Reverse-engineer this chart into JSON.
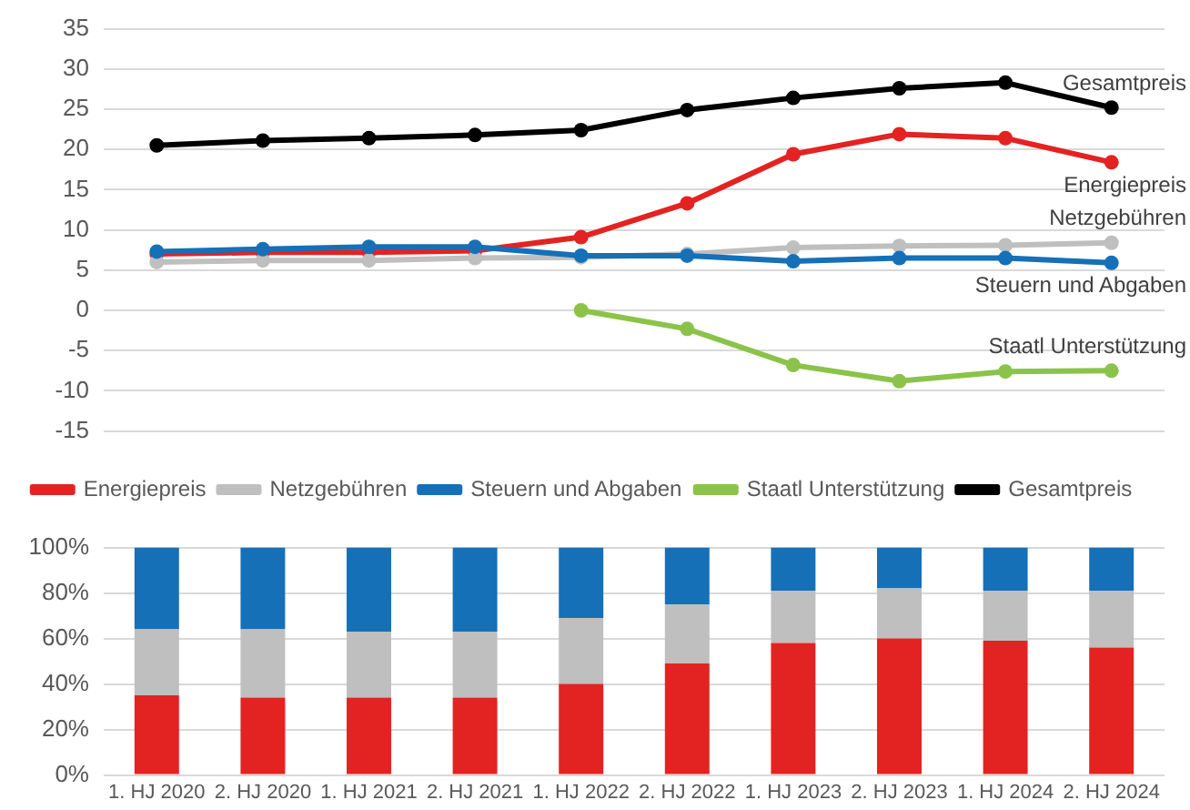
{
  "chart_data": [
    {
      "type": "line",
      "categories": [
        null,
        null,
        null,
        null,
        null,
        null,
        null,
        null,
        null,
        null
      ],
      "ylim": [
        -15,
        35
      ],
      "yticks": [
        -15,
        -10,
        -5,
        0,
        5,
        10,
        15,
        20,
        25,
        30,
        35
      ],
      "grid": "y",
      "legend": "bottom",
      "marker": "circle",
      "line_style": "solid",
      "annotations": [
        {
          "text": "Gesamtpreis",
          "y": 25.2
        },
        {
          "text": "Energiepreis",
          "y": 18.4
        },
        {
          "text": "Netzgebühren",
          "y": 8.4
        },
        {
          "text": "Steuern und Abgaben",
          "y": 5.9
        },
        {
          "text": "Staatl Unterstützung",
          "y": -7.5
        }
      ],
      "series": [
        {
          "name": "Energiepreis",
          "color": "#e32322",
          "values": [
            7.0,
            7.2,
            7.2,
            7.4,
            9.1,
            13.3,
            19.4,
            21.9,
            21.4,
            18.4
          ]
        },
        {
          "name": "Netzgebühren",
          "color": "#bfbfbf",
          "values": [
            6.0,
            6.2,
            6.2,
            6.5,
            6.6,
            7.0,
            7.8,
            8.0,
            8.1,
            8.4
          ]
        },
        {
          "name": "Steuern und Abgaben",
          "color": "#1570b8",
          "values": [
            7.3,
            7.6,
            7.9,
            7.9,
            6.8,
            6.8,
            6.1,
            6.5,
            6.5,
            5.9
          ]
        },
        {
          "name": "Staatl Unterstützung",
          "color": "#8bc34a",
          "values": [
            null,
            null,
            null,
            null,
            0,
            -2.3,
            -6.8,
            -8.8,
            -7.6,
            -7.5
          ]
        },
        {
          "name": "Gesamtpreis",
          "color": "#000000",
          "values": [
            20.5,
            21.1,
            21.4,
            21.8,
            22.4,
            24.9,
            26.4,
            27.6,
            28.3,
            25.2
          ]
        }
      ]
    },
    {
      "type": "bar",
      "stacked": true,
      "categories": [
        "1. HJ 2020",
        "2. HJ 2020",
        "1. HJ 2021",
        "2. HJ 2021",
        "1. HJ 2022",
        "2. HJ 2022",
        "1. HJ 2023",
        "2. HJ 2023",
        "1. HJ 2024",
        "2. HJ 2024"
      ],
      "ylim": [
        0,
        100
      ],
      "yticks": [
        {
          "value": 0,
          "label": "0%"
        },
        {
          "value": 20,
          "label": "20%"
        },
        {
          "value": 40,
          "label": "40%"
        },
        {
          "value": 60,
          "label": "60%"
        },
        {
          "value": 80,
          "label": "80%"
        },
        {
          "value": 100,
          "label": "100%"
        }
      ],
      "grid": "y",
      "legend": false,
      "series": [
        {
          "color": "#e32322",
          "values": [
            35,
            34,
            34,
            34,
            40,
            49,
            58,
            60,
            59,
            56
          ]
        },
        {
          "color": "#bfbfbf",
          "values": [
            29,
            30,
            29,
            29,
            29,
            26,
            23,
            22,
            22,
            25
          ]
        },
        {
          "color": "#1570b8",
          "values": [
            36,
            36,
            37,
            37,
            31,
            25,
            19,
            18,
            19,
            19
          ]
        }
      ]
    }
  ]
}
